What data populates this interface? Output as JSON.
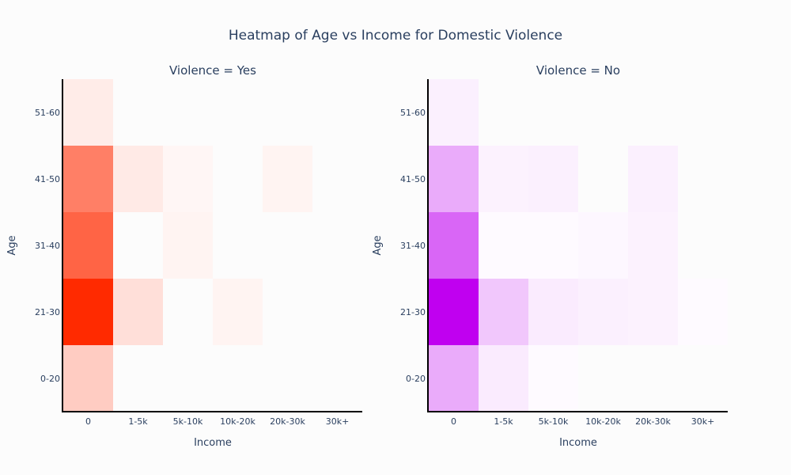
{
  "chart_data": {
    "type": "heatmap",
    "title": "Heatmap of Age vs Income for Domestic Violence",
    "xlabel": "Income",
    "ylabel": "Age",
    "x_categories": [
      "0",
      "1-5k",
      "5k-10k",
      "10k-20k",
      "20k-30k",
      "30k+"
    ],
    "y_categories": [
      "0-20",
      "21-30",
      "31-40",
      "41-50",
      "51-60"
    ],
    "panels": [
      {
        "subtitle": "Violence = Yes",
        "colorscale": [
          "#ffffff",
          "#ff2a00"
        ],
        "z": [
          [
            0.24,
            0.0,
            0.0,
            0.0,
            0.0,
            0.0
          ],
          [
            1.0,
            0.15,
            0.0,
            0.05,
            0.0,
            0.0
          ],
          [
            0.73,
            0.0,
            0.05,
            0.0,
            0.0,
            0.0
          ],
          [
            0.6,
            0.1,
            0.04,
            0.0,
            0.05,
            0.0
          ],
          [
            0.09,
            0.0,
            0.0,
            0.0,
            0.0,
            0.0
          ]
        ]
      },
      {
        "subtitle": "Violence = No",
        "colorscale": [
          "#ffffff",
          "#c000f0"
        ],
        "z": [
          [
            0.33,
            0.08,
            0.02,
            0.0,
            0.0,
            0.0
          ],
          [
            1.0,
            0.22,
            0.08,
            0.06,
            0.05,
            0.02
          ],
          [
            0.6,
            0.02,
            0.02,
            0.03,
            0.05,
            0.0
          ],
          [
            0.33,
            0.05,
            0.06,
            0.0,
            0.06,
            0.0
          ],
          [
            0.06,
            0.0,
            0.0,
            0.0,
            0.0,
            0.0
          ]
        ]
      }
    ]
  }
}
